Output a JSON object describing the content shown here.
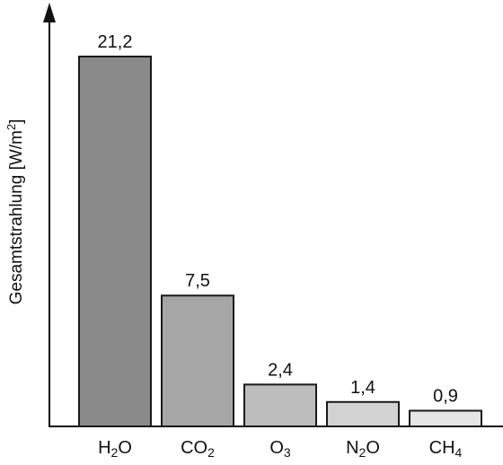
{
  "chart_data": {
    "type": "bar",
    "title": "",
    "xlabel": "",
    "ylabel": "Gesamtstrahlung [W/m²]",
    "ylabel_parts": {
      "main": "Gesamtstrahlung  [W/m",
      "sup": "2",
      "tail": "]"
    },
    "categories": [
      "H2O",
      "CO2",
      "O3",
      "N2O",
      "CH4"
    ],
    "category_labels": [
      {
        "parts": [
          {
            "t": "H"
          },
          {
            "t": "2",
            "sub": true
          },
          {
            "t": "O"
          }
        ]
      },
      {
        "parts": [
          {
            "t": "CO"
          },
          {
            "t": "2",
            "sub": true
          }
        ]
      },
      {
        "parts": [
          {
            "t": "O"
          },
          {
            "t": "3",
            "sub": true
          }
        ]
      },
      {
        "parts": [
          {
            "t": "N"
          },
          {
            "t": "2",
            "sub": true
          },
          {
            "t": "O"
          }
        ]
      },
      {
        "parts": [
          {
            "t": "CH"
          },
          {
            "t": "4",
            "sub": true
          }
        ]
      }
    ],
    "values": [
      21.2,
      7.5,
      2.4,
      1.4,
      0.9
    ],
    "value_labels": [
      "21,2",
      "7,5",
      "2,4",
      "1,4",
      "0,9"
    ],
    "colors": [
      "#8a8a8a",
      "#a6a6a6",
      "#bdbdbd",
      "#d2d2d2",
      "#e6e6e6"
    ],
    "ylim": [
      0,
      21.2
    ],
    "grid": false,
    "legend": "none"
  }
}
